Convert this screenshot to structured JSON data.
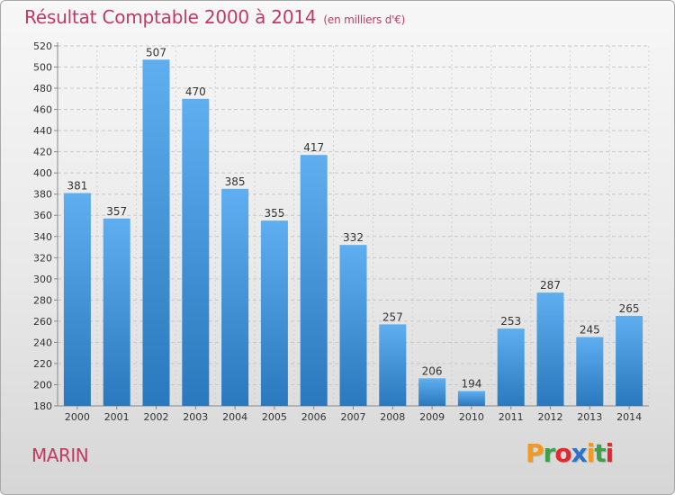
{
  "header": {
    "title": "Résultat Comptable 2000 à 2014",
    "subtitle": "(en milliers d'€)"
  },
  "footer": {
    "city": "MARIN",
    "logo_letters": [
      "P",
      "r",
      "o",
      "x",
      "i",
      "t",
      "i"
    ]
  },
  "colors": {
    "title": "#c23a64",
    "bar_top": "#5eaef0",
    "bar_bottom": "#2a78bd",
    "logo_letters": [
      "#f39a1e",
      "#3ea04b",
      "#e2282f",
      "#2d72c4",
      "#f39a1e",
      "#3ea04b",
      "#e2282f"
    ]
  },
  "chart_data": {
    "type": "bar",
    "title": "Résultat Comptable 2000 à 2014",
    "subtitle": "(en milliers d'€)",
    "xlabel": "",
    "ylabel": "",
    "categories": [
      "2000",
      "2001",
      "2002",
      "2003",
      "2004",
      "2005",
      "2006",
      "2007",
      "2008",
      "2009",
      "2010",
      "2011",
      "2012",
      "2013",
      "2014"
    ],
    "values": [
      381,
      357,
      507,
      470,
      385,
      355,
      417,
      332,
      257,
      206,
      194,
      253,
      287,
      245,
      265
    ],
    "ylim": [
      180,
      520
    ],
    "yticks": [
      "180",
      "200",
      "220",
      "240",
      "260",
      "280",
      "300",
      "320",
      "340",
      "360",
      "380",
      "400",
      "420",
      "440",
      "460",
      "480",
      "500",
      "520"
    ],
    "grid": true
  }
}
